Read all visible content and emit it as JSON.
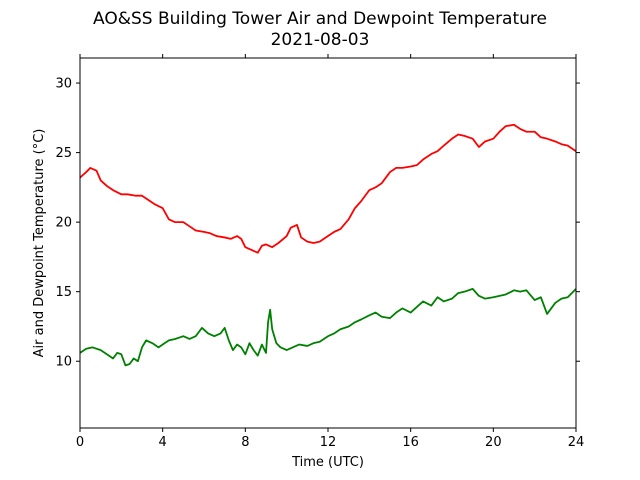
{
  "chart_data": {
    "type": "line",
    "title": "AO&SS Building Tower Air and Dewpoint Temperature",
    "subtitle": "2021-08-03",
    "xlabel": "Time (UTC)",
    "ylabel": "Air and Dewpoint Temperature (°C)",
    "xlim": [
      0,
      24
    ],
    "ylim": [
      5.2,
      31.8
    ],
    "xticks": [
      0,
      4,
      8,
      12,
      16,
      20,
      24
    ],
    "yticks": [
      10,
      15,
      20,
      25,
      30
    ],
    "grid": false,
    "series": [
      {
        "color": "#ff0000",
        "x": [
          0,
          0.3,
          0.5,
          0.8,
          1.0,
          1.3,
          1.6,
          2.0,
          2.3,
          2.7,
          3.0,
          3.3,
          3.6,
          4.0,
          4.3,
          4.6,
          5.0,
          5.3,
          5.6,
          6.0,
          6.3,
          6.6,
          7.0,
          7.3,
          7.6,
          7.8,
          8.0,
          8.3,
          8.6,
          8.8,
          9.0,
          9.3,
          9.6,
          10.0,
          10.2,
          10.5,
          10.7,
          11.0,
          11.3,
          11.6,
          12.0,
          12.3,
          12.6,
          13.0,
          13.3,
          13.6,
          14.0,
          14.3,
          14.6,
          15.0,
          15.3,
          15.6,
          16.0,
          16.3,
          16.6,
          17.0,
          17.3,
          17.6,
          18.0,
          18.3,
          18.6,
          19.0,
          19.3,
          19.6,
          20.0,
          20.3,
          20.6,
          21.0,
          21.3,
          21.6,
          22.0,
          22.3,
          22.6,
          23.0,
          23.3,
          23.6,
          24.0
        ],
        "y": [
          23.2,
          23.6,
          23.9,
          23.7,
          23.0,
          22.6,
          22.3,
          22.0,
          22.0,
          21.9,
          21.9,
          21.6,
          21.3,
          21.0,
          20.2,
          20.0,
          20.0,
          19.7,
          19.4,
          19.3,
          19.2,
          19.0,
          18.9,
          18.8,
          19.0,
          18.8,
          18.2,
          18.0,
          17.8,
          18.3,
          18.4,
          18.2,
          18.5,
          19.0,
          19.6,
          19.8,
          18.9,
          18.6,
          18.5,
          18.6,
          19.0,
          19.3,
          19.5,
          20.2,
          21.0,
          21.5,
          22.3,
          22.5,
          22.8,
          23.6,
          23.9,
          23.9,
          24.0,
          24.1,
          24.5,
          24.9,
          25.1,
          25.5,
          26.0,
          26.3,
          26.2,
          26.0,
          25.4,
          25.8,
          26.0,
          26.5,
          26.9,
          27.0,
          26.7,
          26.5,
          26.5,
          26.1,
          26.0,
          25.8,
          25.6,
          25.5,
          25.1
        ]
      },
      {
        "color": "#008000",
        "x": [
          0,
          0.3,
          0.6,
          1.0,
          1.3,
          1.6,
          1.8,
          2.0,
          2.2,
          2.4,
          2.6,
          2.8,
          3.0,
          3.2,
          3.5,
          3.8,
          4.0,
          4.3,
          4.6,
          5.0,
          5.3,
          5.6,
          5.9,
          6.2,
          6.5,
          6.8,
          7.0,
          7.2,
          7.4,
          7.6,
          7.8,
          8.0,
          8.2,
          8.4,
          8.6,
          8.8,
          9.0,
          9.1,
          9.2,
          9.3,
          9.5,
          9.7,
          10.0,
          10.3,
          10.6,
          11.0,
          11.3,
          11.6,
          12.0,
          12.3,
          12.6,
          13.0,
          13.3,
          13.6,
          14.0,
          14.3,
          14.6,
          15.0,
          15.3,
          15.6,
          16.0,
          16.3,
          16.6,
          17.0,
          17.3,
          17.6,
          18.0,
          18.3,
          18.6,
          19.0,
          19.3,
          19.6,
          20.0,
          20.3,
          20.6,
          21.0,
          21.3,
          21.6,
          22.0,
          22.3,
          22.6,
          23.0,
          23.3,
          23.6,
          24.0
        ],
        "y": [
          10.6,
          10.9,
          11.0,
          10.8,
          10.5,
          10.2,
          10.6,
          10.5,
          9.7,
          9.8,
          10.2,
          10.0,
          11.0,
          11.5,
          11.3,
          11.0,
          11.2,
          11.5,
          11.6,
          11.8,
          11.6,
          11.8,
          12.4,
          12.0,
          11.8,
          12.0,
          12.4,
          11.5,
          10.8,
          11.2,
          11.0,
          10.5,
          11.3,
          10.8,
          10.4,
          11.2,
          10.6,
          12.8,
          13.7,
          12.3,
          11.3,
          11.0,
          10.8,
          11.0,
          11.2,
          11.1,
          11.3,
          11.4,
          11.8,
          12.0,
          12.3,
          12.5,
          12.8,
          13.0,
          13.3,
          13.5,
          13.2,
          13.1,
          13.5,
          13.8,
          13.5,
          13.9,
          14.3,
          14.0,
          14.6,
          14.3,
          14.5,
          14.9,
          15.0,
          15.2,
          14.7,
          14.5,
          14.6,
          14.7,
          14.8,
          15.1,
          15.0,
          15.1,
          14.4,
          14.6,
          13.4,
          14.2,
          14.5,
          14.6,
          15.2
        ]
      }
    ]
  }
}
